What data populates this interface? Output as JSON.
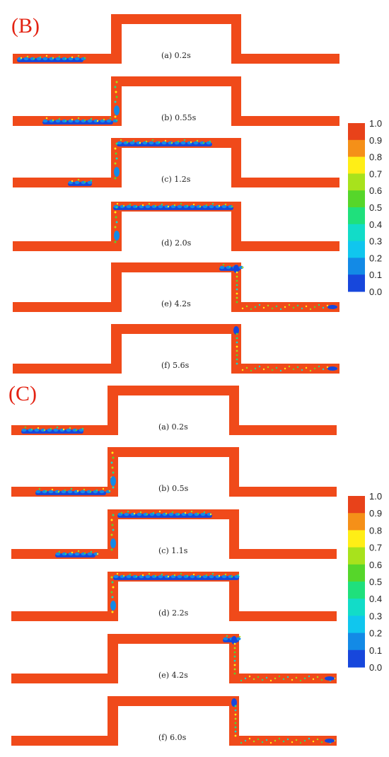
{
  "figures": [
    {
      "label": "(B)",
      "frames": [
        {
          "caption": "(a) 0.2s"
        },
        {
          "caption": "(b) 0.55s"
        },
        {
          "caption": "(c) 1.2s"
        },
        {
          "caption": "(d) 2.0s"
        },
        {
          "caption": "(e) 4.2s"
        },
        {
          "caption": "(f) 5.6s"
        }
      ],
      "colorbar": {
        "ticks": [
          "1.0",
          "0.9",
          "0.8",
          "0.7",
          "0.6",
          "0.5",
          "0.4",
          "0.3",
          "0.2",
          "0.1",
          "0.0"
        ]
      }
    },
    {
      "label": "(C)",
      "frames": [
        {
          "caption": "(a) 0.2s"
        },
        {
          "caption": "(b) 0.5s"
        },
        {
          "caption": "(c) 1.1s"
        },
        {
          "caption": "(d) 2.2s"
        },
        {
          "caption": "(e) 4.2s"
        },
        {
          "caption": "(f) 6.0s"
        }
      ],
      "colorbar": {
        "ticks": [
          "1.0",
          "0.9",
          "0.8",
          "0.7",
          "0.6",
          "0.5",
          "0.4",
          "0.3",
          "0.2",
          "0.1",
          "0.0"
        ]
      }
    }
  ],
  "colors": {
    "pipe_fill": "#f04a1a",
    "label": "#e32212",
    "scale": [
      "#e8421a",
      "#f59018",
      "#ffee16",
      "#a8e21c",
      "#56d62a",
      "#1fe07c",
      "#12dcc8",
      "#10c6ee",
      "#138ae6",
      "#1747dc"
    ]
  }
}
